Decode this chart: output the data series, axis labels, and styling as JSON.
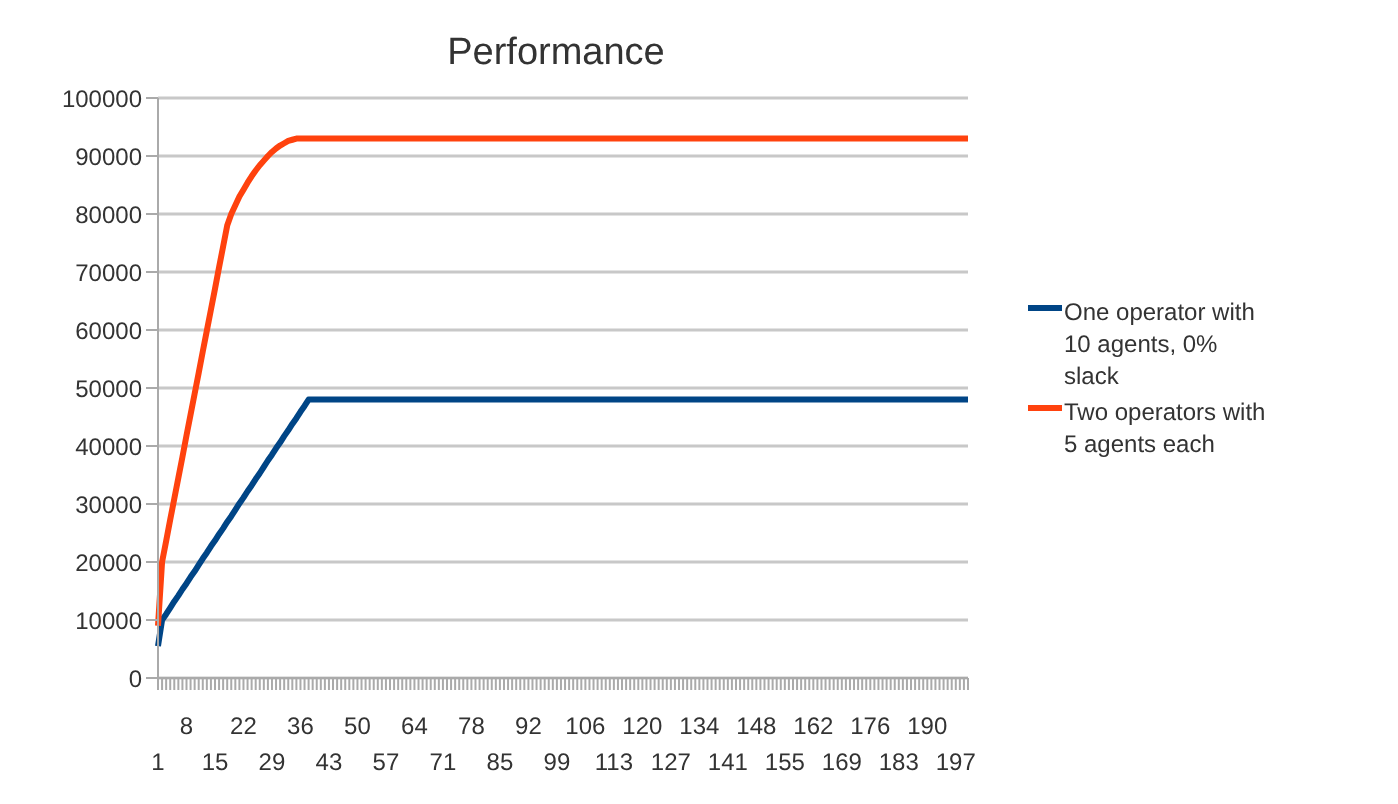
{
  "chart_data": {
    "type": "line",
    "title": "Performance",
    "categories": [
      "1",
      null,
      null,
      null,
      null,
      null,
      null,
      "8",
      null,
      null,
      null,
      null,
      null,
      null,
      "15",
      null,
      null,
      null,
      null,
      null,
      null,
      "22",
      null,
      null,
      null,
      null,
      null,
      null,
      "29",
      null,
      null,
      null,
      null,
      null,
      null,
      "36",
      null,
      null,
      null,
      null,
      null,
      null,
      "43",
      null,
      null,
      null,
      null,
      null,
      null,
      "50",
      null,
      null,
      null,
      null,
      null,
      null,
      "57",
      null,
      null,
      null,
      null,
      null,
      null,
      "64",
      null,
      null,
      null,
      null,
      null,
      null,
      "71",
      null,
      null,
      null,
      null,
      null,
      null,
      "78",
      null,
      null,
      null,
      null,
      null,
      null,
      "85",
      null,
      null,
      null,
      null,
      null,
      null,
      "92",
      null,
      null,
      null,
      null,
      null,
      null,
      "99",
      null,
      null,
      null,
      null,
      null,
      null,
      "106",
      null,
      null,
      null,
      null,
      null,
      null,
      "113",
      null,
      null,
      null,
      null,
      null,
      null,
      "120",
      null,
      null,
      null,
      null,
      null,
      null,
      "127",
      null,
      null,
      null,
      null,
      null,
      null,
      "134",
      null,
      null,
      null,
      null,
      null,
      null,
      "141",
      null,
      null,
      null,
      null,
      null,
      null,
      "148",
      null,
      null,
      null,
      null,
      null,
      null,
      "155",
      null,
      null,
      null,
      null,
      null,
      null,
      "162",
      null,
      null,
      null,
      null,
      null,
      null,
      "169",
      null,
      null,
      null,
      null,
      null,
      null,
      "176",
      null,
      null,
      null,
      null,
      null,
      null,
      "183",
      null,
      null,
      null,
      null,
      null,
      null,
      "190",
      null,
      null,
      null,
      null,
      null,
      null,
      "197",
      null,
      null,
      null
    ],
    "series": [
      {
        "name": "One operator with 10 agents, 0% slack",
        "color": "#004586",
        "values": [
          5500,
          10000,
          11000,
          12100,
          13200,
          14200,
          15300,
          16300,
          17400,
          18400,
          19500,
          20600,
          21600,
          22700,
          23700,
          24800,
          25800,
          26900,
          27900,
          29000,
          30100,
          31100,
          32200,
          33200,
          34300,
          35300,
          36400,
          37500,
          38500,
          39600,
          40600,
          41700,
          42700,
          43800,
          44800,
          45900,
          46900,
          48000,
          48000,
          48000,
          48000,
          48000,
          48000,
          48000,
          48000,
          48000,
          48000,
          48000,
          48000,
          48000,
          48000,
          48000,
          48000,
          48000,
          48000,
          48000,
          48000,
          48000,
          48000,
          48000,
          48000,
          48000,
          48000,
          48000,
          48000,
          48000,
          48000,
          48000,
          48000,
          48000,
          48000,
          48000,
          48000,
          48000,
          48000,
          48000,
          48000,
          48000,
          48000,
          48000,
          48000,
          48000,
          48000,
          48000,
          48000,
          48000,
          48000,
          48000,
          48000,
          48000,
          48000,
          48000,
          48000,
          48000,
          48000,
          48000,
          48000,
          48000,
          48000,
          48000,
          48000,
          48000,
          48000,
          48000,
          48000,
          48000,
          48000,
          48000,
          48000,
          48000,
          48000,
          48000,
          48000,
          48000,
          48000,
          48000,
          48000,
          48000,
          48000,
          48000,
          48000,
          48000,
          48000,
          48000,
          48000,
          48000,
          48000,
          48000,
          48000,
          48000,
          48000,
          48000,
          48000,
          48000,
          48000,
          48000,
          48000,
          48000,
          48000,
          48000,
          48000,
          48000,
          48000,
          48000,
          48000,
          48000,
          48000,
          48000,
          48000,
          48000,
          48000,
          48000,
          48000,
          48000,
          48000,
          48000,
          48000,
          48000,
          48000,
          48000,
          48000,
          48000,
          48000,
          48000,
          48000,
          48000,
          48000,
          48000,
          48000,
          48000,
          48000,
          48000,
          48000,
          48000,
          48000,
          48000,
          48000,
          48000,
          48000,
          48000,
          48000,
          48000,
          48000,
          48000,
          48000,
          48000,
          48000,
          48000,
          48000,
          48000,
          48000,
          48000,
          48000,
          48000,
          48000,
          48000,
          48000,
          48000,
          48000,
          48000
        ]
      },
      {
        "name": "Two operators with 5 agents each",
        "color": "#ff420e",
        "values": [
          9000,
          20000,
          23600,
          27300,
          30900,
          34500,
          38100,
          41800,
          45400,
          49000,
          52600,
          56300,
          59900,
          63500,
          67100,
          70800,
          74400,
          78000,
          80000,
          81500,
          83000,
          84200,
          85400,
          86500,
          87500,
          88400,
          89200,
          90000,
          90700,
          91300,
          91800,
          92200,
          92600,
          92800,
          93000,
          93000,
          93000,
          93000,
          93000,
          93000,
          93000,
          93000,
          93000,
          93000,
          93000,
          93000,
          93000,
          93000,
          93000,
          93000,
          93000,
          93000,
          93000,
          93000,
          93000,
          93000,
          93000,
          93000,
          93000,
          93000,
          93000,
          93000,
          93000,
          93000,
          93000,
          93000,
          93000,
          93000,
          93000,
          93000,
          93000,
          93000,
          93000,
          93000,
          93000,
          93000,
          93000,
          93000,
          93000,
          93000,
          93000,
          93000,
          93000,
          93000,
          93000,
          93000,
          93000,
          93000,
          93000,
          93000,
          93000,
          93000,
          93000,
          93000,
          93000,
          93000,
          93000,
          93000,
          93000,
          93000,
          93000,
          93000,
          93000,
          93000,
          93000,
          93000,
          93000,
          93000,
          93000,
          93000,
          93000,
          93000,
          93000,
          93000,
          93000,
          93000,
          93000,
          93000,
          93000,
          93000,
          93000,
          93000,
          93000,
          93000,
          93000,
          93000,
          93000,
          93000,
          93000,
          93000,
          93000,
          93000,
          93000,
          93000,
          93000,
          93000,
          93000,
          93000,
          93000,
          93000,
          93000,
          93000,
          93000,
          93000,
          93000,
          93000,
          93000,
          93000,
          93000,
          93000,
          93000,
          93000,
          93000,
          93000,
          93000,
          93000,
          93000,
          93000,
          93000,
          93000,
          93000,
          93000,
          93000,
          93000,
          93000,
          93000,
          93000,
          93000,
          93000,
          93000,
          93000,
          93000,
          93000,
          93000,
          93000,
          93000,
          93000,
          93000,
          93000,
          93000,
          93000,
          93000,
          93000,
          93000,
          93000,
          93000,
          93000,
          93000,
          93000,
          93000,
          93000,
          93000,
          93000,
          93000,
          93000,
          93000,
          93000,
          93000,
          93000,
          93000
        ]
      }
    ],
    "ylim": [
      0,
      100000
    ],
    "yticks": [
      0,
      10000,
      20000,
      30000,
      40000,
      50000,
      60000,
      70000,
      80000,
      90000,
      100000
    ],
    "grid": "y",
    "legend": "right",
    "marker": "none",
    "line_style": "solid"
  }
}
